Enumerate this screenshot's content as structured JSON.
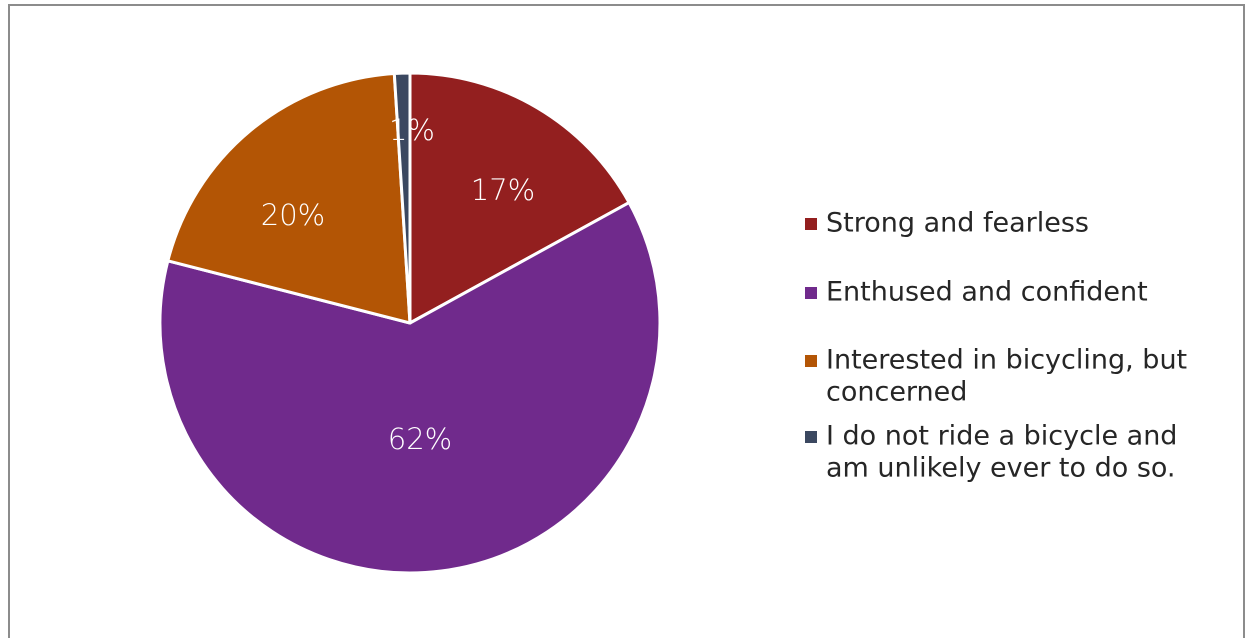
{
  "chart_data": {
    "type": "pie",
    "slices": [
      {
        "name": "Strong and fearless",
        "label": "17%",
        "value": 17,
        "color": "#931f1f"
      },
      {
        "name": "Enthused and confident",
        "label": "62%",
        "value": 62,
        "color": "#702a8c"
      },
      {
        "name": "Interested in bicycling, but concerned",
        "label": "20%",
        "value": 20,
        "color": "#b35505"
      },
      {
        "name": "I do not ride a bicycle and am unlikely ever to do so.",
        "label": "1%",
        "value": 1,
        "color": "#3b4860"
      }
    ],
    "legend": {
      "placement": "right",
      "items": [
        {
          "lines": [
            "Strong and fearless"
          ],
          "color": "#931f1f"
        },
        {
          "lines": [
            "Enthused and confident"
          ],
          "color": "#702a8c"
        },
        {
          "lines": [
            "Interested in bicycling, but",
            "concerned"
          ],
          "color": "#b35505"
        },
        {
          "lines": [
            "I do not ride a bicycle and",
            "am unlikely ever to do so."
          ],
          "color": "#3b4860"
        }
      ]
    }
  }
}
